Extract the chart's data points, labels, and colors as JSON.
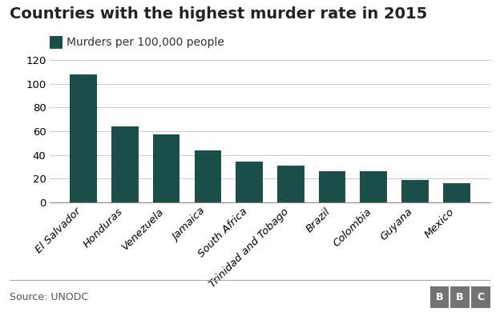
{
  "title": "Countries with the highest murder rate in 2015",
  "legend_label": "Murders per 100,000 people",
  "source": "Source: UNODC",
  "bbc_label": "BBC",
  "categories": [
    "El Salvador",
    "Honduras",
    "Venezuela",
    "Jamaica",
    "South Africa",
    "Trinidad and Tobago",
    "Brazil",
    "Colombia",
    "Guyana",
    "Mexico"
  ],
  "values": [
    108,
    64,
    57,
    44,
    34,
    31,
    26,
    26,
    19,
    16
  ],
  "bar_color": "#1d4f4a",
  "background_color": "#ffffff",
  "ylim": [
    0,
    120
  ],
  "yticks": [
    0,
    20,
    40,
    60,
    80,
    100,
    120
  ],
  "title_fontsize": 14,
  "legend_fontsize": 10,
  "tick_fontsize": 9.5,
  "source_fontsize": 9,
  "bbc_fontsize": 9,
  "bbc_bg": "#737373"
}
